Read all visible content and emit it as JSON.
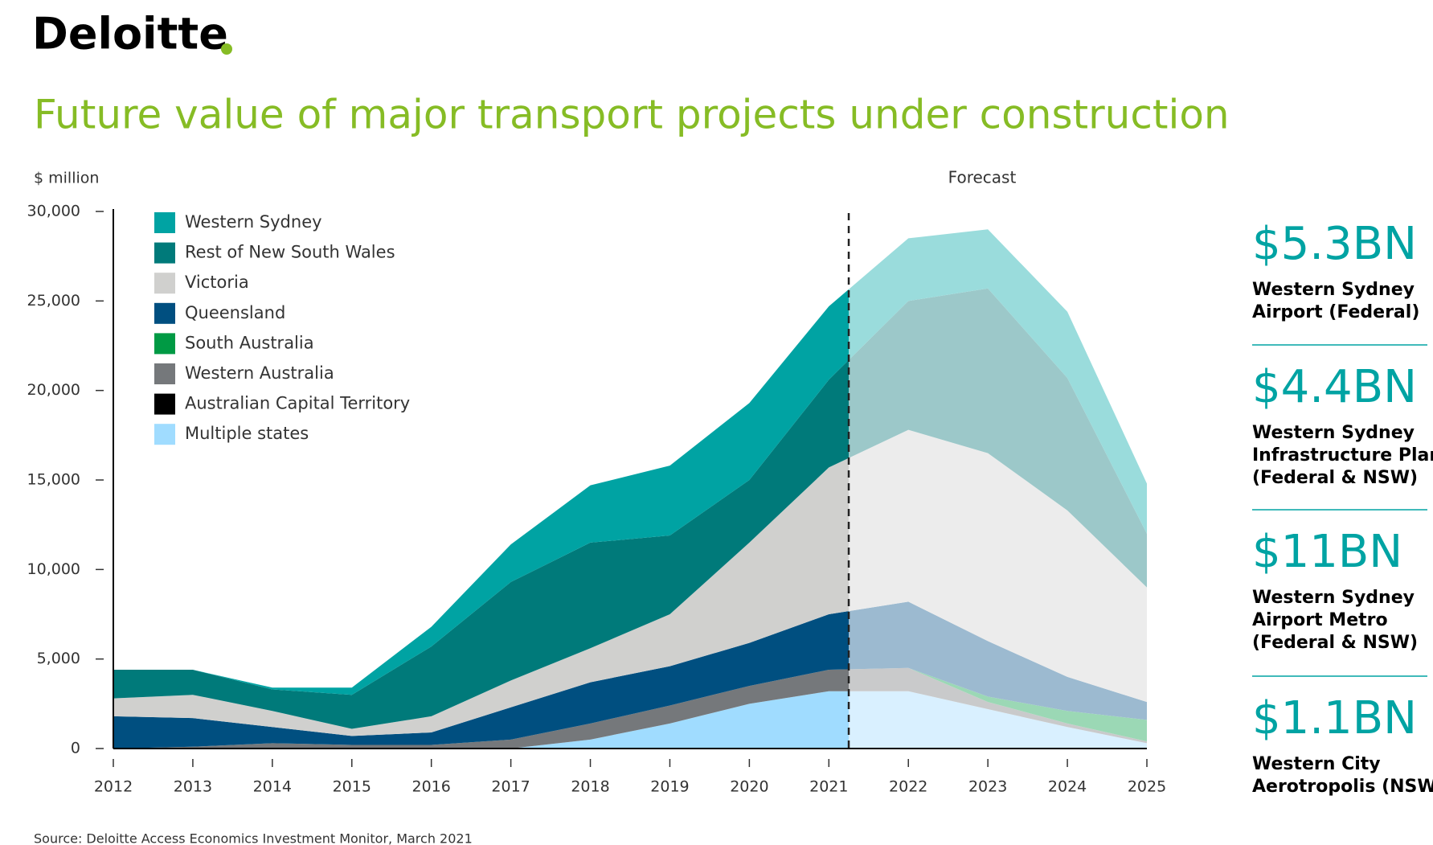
{
  "logo": "Deloitte",
  "chart_data": {
    "type": "stacked_area",
    "title": "Future value of major transport projects under construction",
    "y_label": "$ million",
    "forecast_label": "Forecast",
    "forecast_from": 2021.25,
    "source": "Source: Deloitte Access Economics Investment Monitor, March 2021",
    "x": [
      2012,
      2013,
      2014,
      2015,
      2016,
      2017,
      2018,
      2019,
      2020,
      2021,
      2022,
      2023,
      2024,
      2025
    ],
    "xlim": [
      2012,
      2025
    ],
    "xticks": [
      2012,
      2013,
      2014,
      2015,
      2016,
      2017,
      2018,
      2019,
      2020,
      2021,
      2022,
      2023,
      2024,
      2025
    ],
    "ylim": [
      0,
      30000
    ],
    "yticks": [
      0,
      {
        "value": 5000,
        "label": "5,000"
      },
      {
        "value": 10000,
        "label": "10,000"
      },
      {
        "value": 15000,
        "label": "15,000"
      },
      {
        "value": 20000,
        "label": "20,000"
      },
      {
        "value": 25000,
        "label": "25,000"
      },
      {
        "value": 30000,
        "label": "30,000"
      }
    ],
    "series": [
      {
        "name": "Western Sydney",
        "color": "#00a3a3",
        "forecast_color": "#9adcdc",
        "values": [
          0,
          0,
          100,
          400,
          1100,
          2100,
          3200,
          3900,
          4300,
          4100,
          3500,
          3300,
          3700,
          2800
        ]
      },
      {
        "name": "Rest of New South Wales",
        "color": "#007a7a",
        "forecast_color": "#9cc8c9",
        "values": [
          1600,
          1400,
          1200,
          1900,
          3900,
          5500,
          5900,
          4400,
          3500,
          4900,
          7200,
          9200,
          7400,
          3000
        ]
      },
      {
        "name": "Victoria",
        "color": "#d0d0ce",
        "forecast_color": "#ececec",
        "values": [
          1000,
          1300,
          900,
          400,
          900,
          1500,
          1900,
          2900,
          5600,
          8200,
          9600,
          10500,
          9300,
          6400
        ]
      },
      {
        "name": "Queensland",
        "color": "#004f80",
        "forecast_color": "#9cbad0",
        "values": [
          1800,
          1600,
          900,
          500,
          700,
          1800,
          2300,
          2200,
          2400,
          3100,
          3700,
          3100,
          1900,
          1000
        ]
      },
      {
        "name": "South Australia",
        "color": "#009a44",
        "forecast_color": "#9bd8b5",
        "values": [
          0,
          0,
          0,
          0,
          0,
          0,
          0,
          0,
          0,
          0,
          0,
          300,
          700,
          1200
        ]
      },
      {
        "name": "Western Australia",
        "color": "#75787b",
        "forecast_color": "#c9cacb",
        "values": [
          0,
          100,
          300,
          200,
          200,
          500,
          900,
          1000,
          1000,
          1200,
          1300,
          400,
          200,
          100
        ]
      },
      {
        "name": "Australian Capital Territory",
        "color": "#000000",
        "forecast_color": "#999999",
        "values": [
          0,
          0,
          0,
          0,
          0,
          0,
          0,
          0,
          0,
          0,
          0,
          0,
          0,
          0
        ]
      },
      {
        "name": "Multiple states",
        "color": "#a0dcff",
        "forecast_color": "#d9f0ff",
        "values": [
          0,
          0,
          0,
          0,
          0,
          0,
          500,
          1400,
          2500,
          3200,
          3200,
          2200,
          1200,
          300
        ]
      }
    ]
  },
  "highlights": [
    {
      "value": "$5.3BN",
      "lines": [
        "Western Sydney",
        "Airport (Federal)"
      ]
    },
    {
      "value": "$4.4BN",
      "lines": [
        "Western Sydney",
        "Infrastructure Plan",
        "(Federal & NSW)"
      ]
    },
    {
      "value": "$11BN",
      "lines": [
        "Western Sydney",
        "Airport Metro",
        "(Federal & NSW)"
      ]
    },
    {
      "value": "$1.1BN",
      "lines": [
        "Western City",
        "Aerotropolis (NSW)"
      ]
    }
  ]
}
